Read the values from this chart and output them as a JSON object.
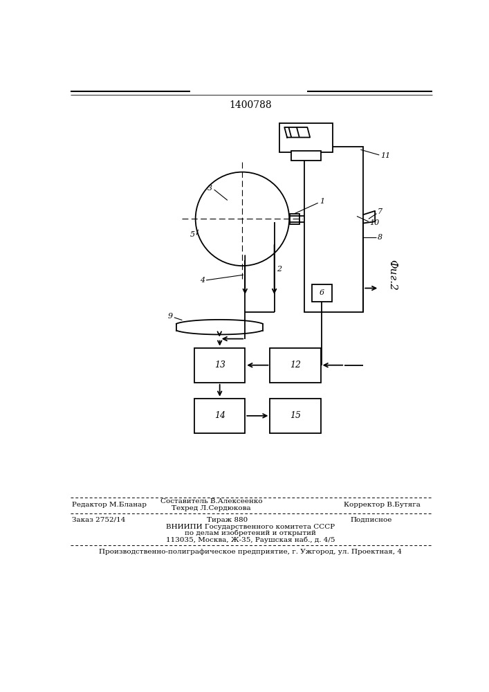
{
  "title": "1400788",
  "fig_label": "Фиг.2",
  "background_color": "#ffffff",
  "line_color": "#000000",
  "footer": {
    "row1_left": "Редактор М.Бланар",
    "row1_center_top": "Составитель В.Алексеенко",
    "row1_center_bot": "Техред Л.Сердюкова",
    "row1_right": "Корректор В.Бутяга",
    "row2_left": "Заказ 2752/14",
    "row2_center": "Тираж 880",
    "row2_right": "Подписное",
    "row3": "ВНИИПИ Государственного комитета СССР",
    "row4": "по делам изобретений и открытий",
    "row5": "113035, Москва, Ж-35, Раушская наб., д. 4/5",
    "row6": "Производственно-полиграфическое предприятие, г. Ужгород, ул. Проектная, 4"
  }
}
